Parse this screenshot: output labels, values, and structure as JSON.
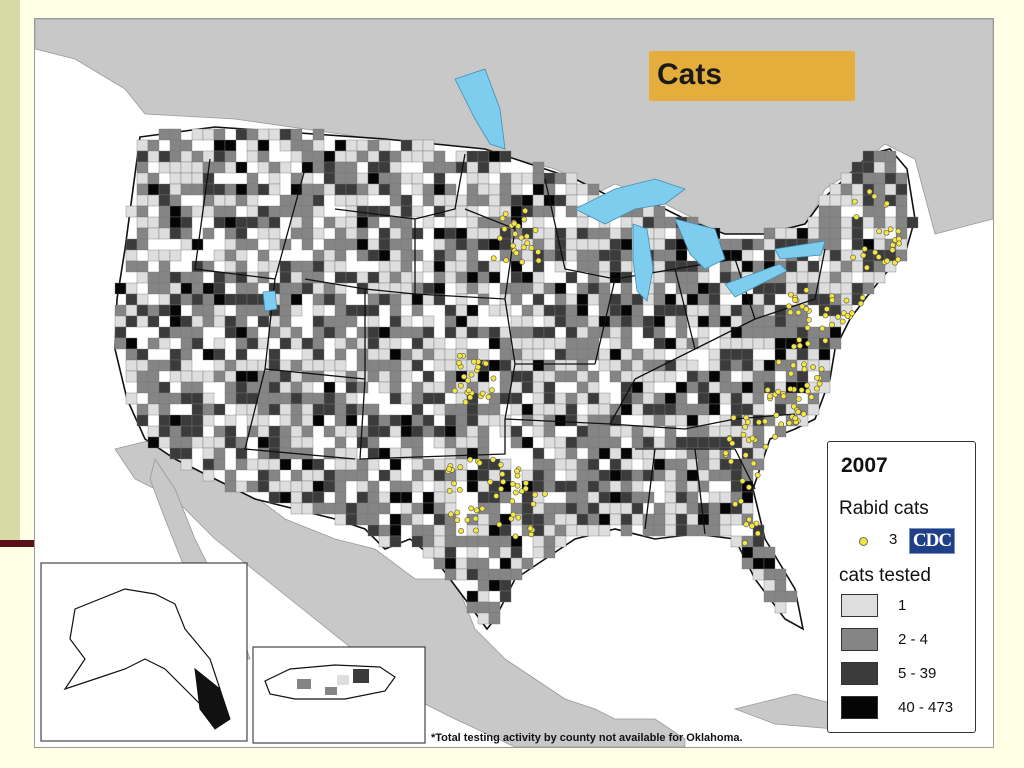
{
  "slide": {
    "colors": {
      "background": "#ffffe6",
      "side_bar": "#d9d9a5",
      "rule": "#5a0f1a"
    }
  },
  "map": {
    "title": "Cats",
    "title_color": "#e5ad3c",
    "region": "United States, counties (with Alaska and Puerto Rico insets)",
    "colors": {
      "land": "#ffffff",
      "background_land": "#c8c8c8",
      "water": "#ffffff",
      "lakes": "#7fcdee",
      "borders": "#111111",
      "county_lines": "#777777"
    },
    "legend": {
      "year": "2007",
      "rabid_title": "Rabid cats",
      "rabid_symbol": {
        "value": "3",
        "color": "#f5e642",
        "shape": "circle"
      },
      "tested_title": "cats tested",
      "bins": [
        {
          "label": "1",
          "color": "#dedede"
        },
        {
          "label": "2 - 4",
          "color": "#858585"
        },
        {
          "label": "5 - 39",
          "color": "#3b3b3b"
        },
        {
          "label": "40 - 473",
          "color": "#050505"
        }
      ]
    },
    "logo": "CDC",
    "footnote": "*Total testing activity by county not available for Oklahoma."
  }
}
